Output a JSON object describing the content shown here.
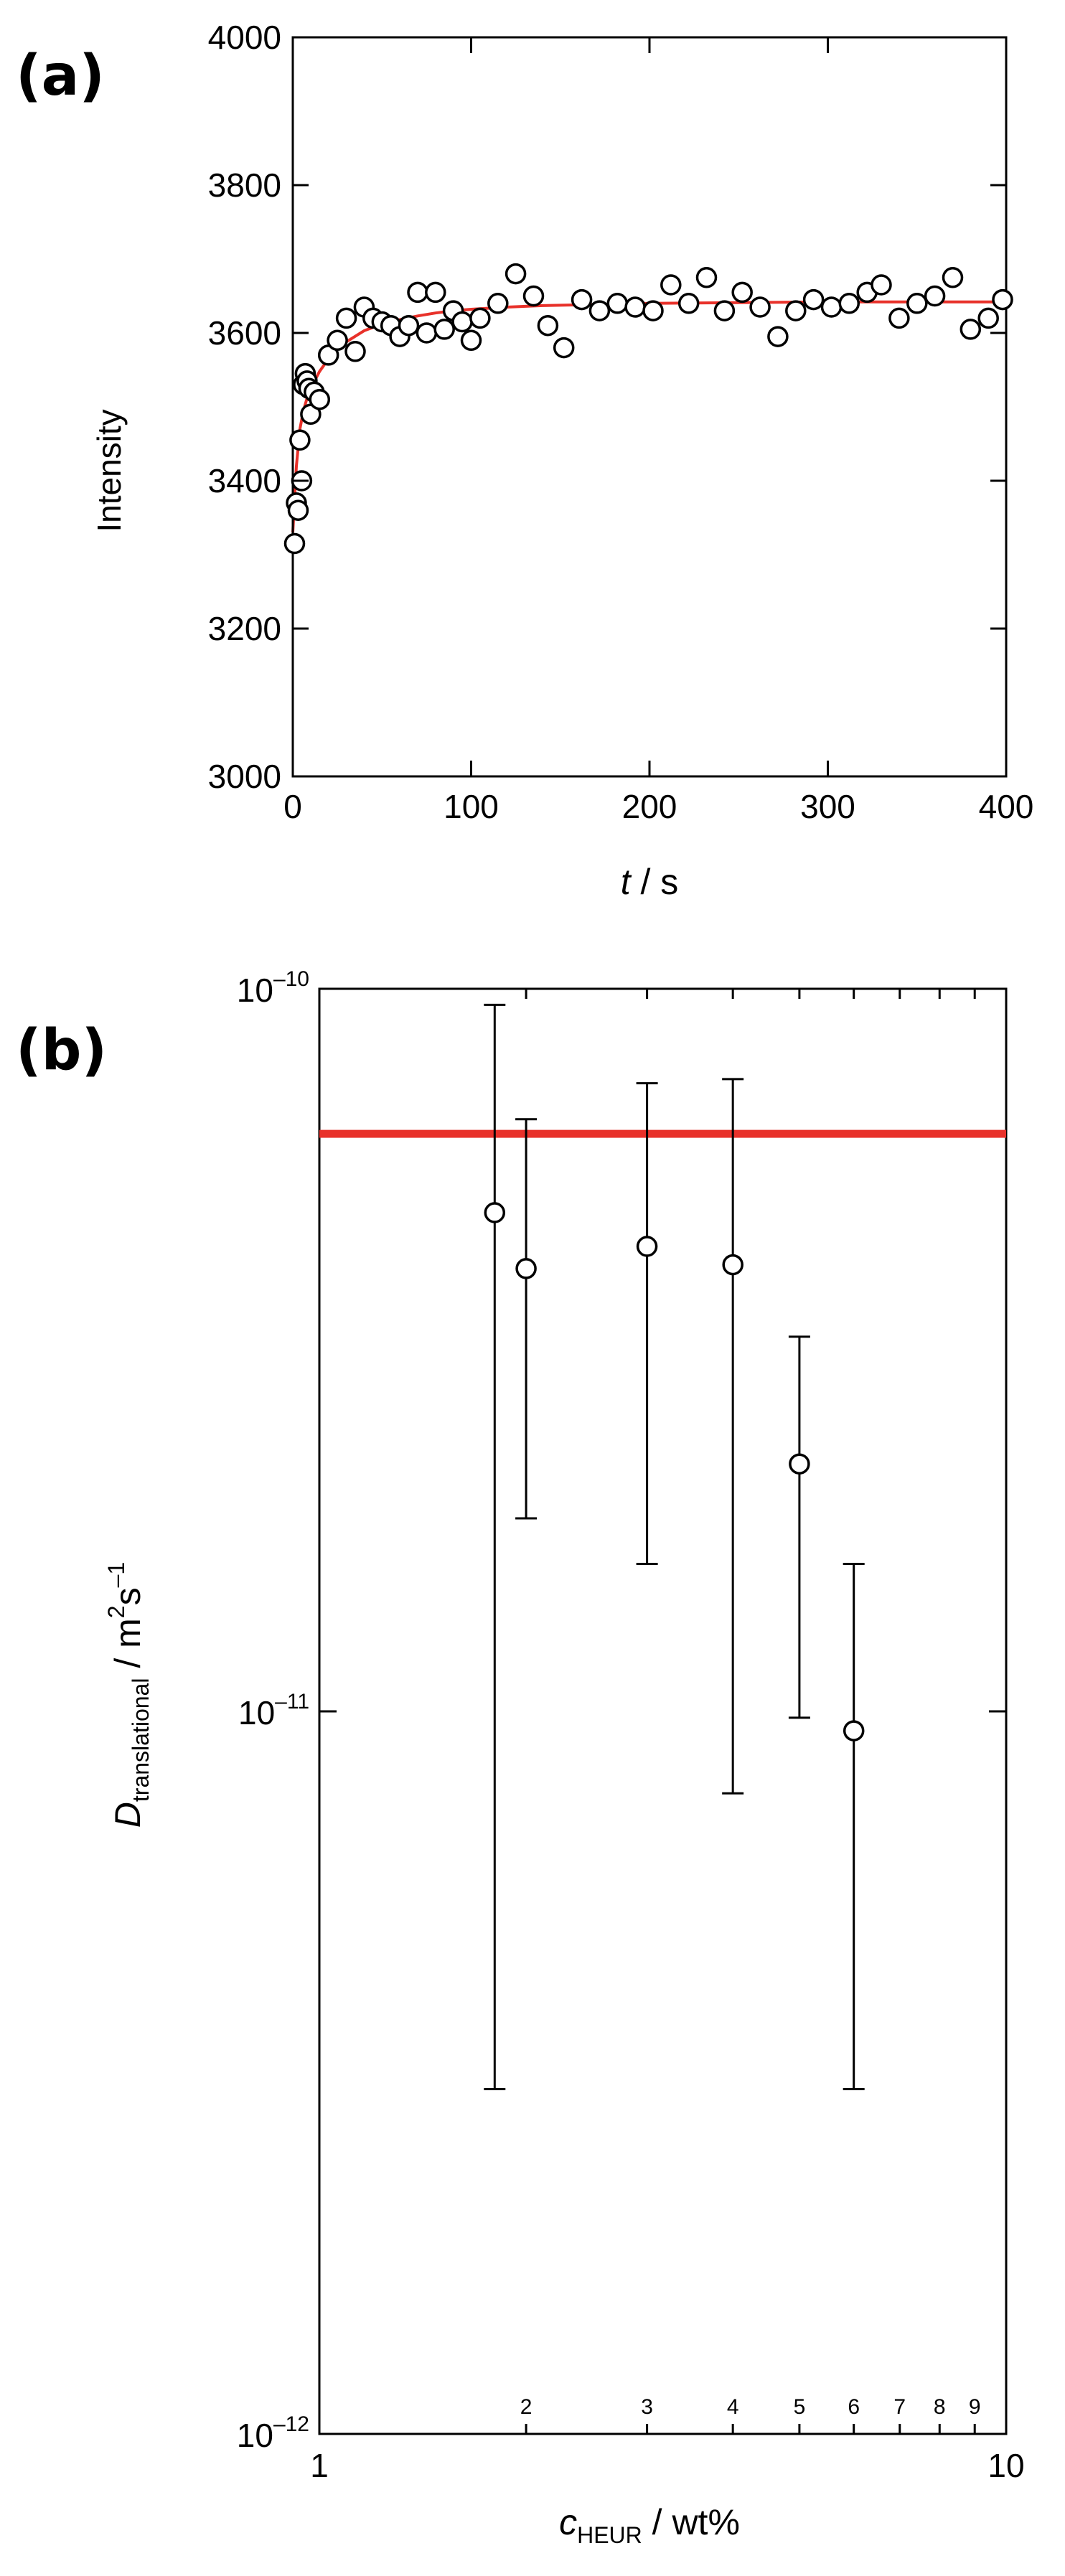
{
  "panels": [
    {
      "label": "(a)",
      "chart_data": {
        "type": "scatter",
        "xlabel": {
          "var": "t",
          "unit": " / s"
        },
        "ylabel": "Intensity",
        "xlim": [
          0,
          400
        ],
        "ylim": [
          3000,
          4000
        ],
        "xticks": [
          "0",
          "100",
          "200",
          "300",
          "400"
        ],
        "yticks": [
          "3000",
          "3200",
          "3400",
          "3600",
          "3800",
          "4000"
        ],
        "xtick_values": [
          0,
          100,
          200,
          300,
          400
        ],
        "ytick_values": [
          3000,
          3200,
          3400,
          3600,
          3800,
          4000
        ],
        "grid": false,
        "series": [
          {
            "kind": "points",
            "marker": "open-circle",
            "color": "#000000",
            "x": [
              1,
              2,
              3,
              4,
              5,
              6,
              7,
              8,
              9,
              10,
              12,
              15,
              20,
              25,
              30,
              35,
              40,
              45,
              50,
              55,
              60,
              65,
              70,
              75,
              80,
              85,
              90,
              95,
              100,
              105,
              115,
              125,
              135,
              143,
              152,
              162,
              172,
              182,
              192,
              202,
              212,
              222,
              232,
              242,
              252,
              262,
              272,
              282,
              292,
              302,
              312,
              322,
              330,
              340,
              350,
              360,
              370,
              380,
              390,
              398
            ],
            "y": [
              3315,
              3370,
              3360,
              3455,
              3400,
              3530,
              3545,
              3535,
              3525,
              3490,
              3520,
              3510,
              3570,
              3590,
              3620,
              3575,
              3635,
              3620,
              3615,
              3610,
              3595,
              3610,
              3655,
              3600,
              3655,
              3605,
              3630,
              3615,
              3590,
              3620,
              3640,
              3680,
              3650,
              3610,
              3580,
              3645,
              3630,
              3640,
              3635,
              3630,
              3665,
              3640,
              3675,
              3630,
              3655,
              3635,
              3595,
              3630,
              3645,
              3635,
              3640,
              3655,
              3665,
              3620,
              3640,
              3650,
              3675,
              3605,
              3620,
              3645
            ]
          },
          {
            "kind": "line",
            "color": "#e8312a",
            "x": [
              0,
              2,
              4,
              6,
              8,
              10,
              15,
              20,
              25,
              30,
              40,
              50,
              60,
              70,
              80,
              90,
              100,
              120,
              140,
              160,
              180,
              200,
              250,
              300,
              350,
              400
            ],
            "y": [
              3330,
              3420,
              3470,
              3495,
              3512,
              3525,
              3548,
              3565,
              3578,
              3588,
              3603,
              3612,
              3618,
              3623,
              3627,
              3630,
              3632,
              3635,
              3637,
              3638,
              3639,
              3640,
              3641,
              3642,
              3642,
              3642
            ]
          }
        ]
      }
    },
    {
      "label": "(b)",
      "chart_data": {
        "type": "scatter",
        "xlabel": {
          "var": "c",
          "sub": "HEUR",
          "unit": " / wt%"
        },
        "ylabel": {
          "var": "D",
          "sub": "translational",
          "unit": " / m",
          "sup1": "2",
          "mid": "s",
          "sup2": "–1"
        },
        "xscale": "log",
        "yscale": "log",
        "xlim": [
          1,
          10
        ],
        "ylim": [
          1e-12,
          1e-10
        ],
        "xticks_major": [
          "1",
          "10"
        ],
        "xticks_major_values": [
          1,
          10
        ],
        "xticks_minor": [
          "2",
          "3",
          "4",
          "5",
          "6",
          "7",
          "8",
          "9"
        ],
        "xticks_minor_values": [
          2,
          3,
          4,
          5,
          6,
          7,
          8,
          9
        ],
        "yticks": [
          {
            "base": "10",
            "exp": "–10",
            "value": 1e-10
          },
          {
            "base": "10",
            "exp": "–11",
            "value": 1e-11
          },
          {
            "base": "10",
            "exp": "–12",
            "value": 1e-12
          }
        ],
        "grid": false,
        "reference_line": {
          "y": 6.3e-11,
          "color": "#e8312a"
        },
        "points": [
          {
            "x": 1.8,
            "y": 4.9e-11,
            "yerr_low": 3e-12,
            "yerr_high": 9.5e-11
          },
          {
            "x": 2.0,
            "y": 4.1e-11,
            "yerr_low": 1.85e-11,
            "yerr_high": 6.6e-11
          },
          {
            "x": 3.0,
            "y": 4.4e-11,
            "yerr_low": 1.6e-11,
            "yerr_high": 7.4e-11
          },
          {
            "x": 4.0,
            "y": 4.15e-11,
            "yerr_low": 7.7e-12,
            "yerr_high": 7.5e-11
          },
          {
            "x": 5.0,
            "y": 2.2e-11,
            "yerr_low": 9.8e-12,
            "yerr_high": 3.3e-11
          },
          {
            "x": 6.0,
            "y": 9.4e-12,
            "yerr_low": 3e-12,
            "yerr_high": 1.6e-11
          }
        ]
      }
    }
  ]
}
